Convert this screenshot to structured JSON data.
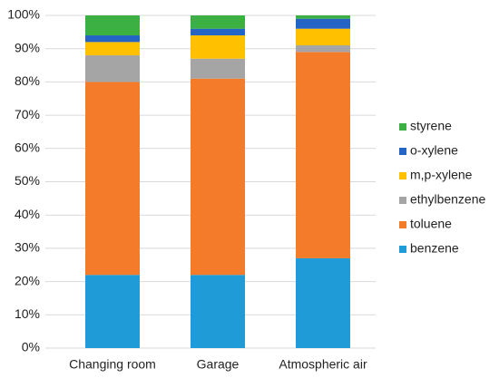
{
  "chart_data": {
    "type": "stacked_bar_100",
    "categories": [
      "Changing room",
      "Garage",
      "Atmospheric air"
    ],
    "series": [
      {
        "name": "benzene",
        "color": "#1f9bd7",
        "values": [
          22,
          22,
          27
        ]
      },
      {
        "name": "toluene",
        "color": "#f47b2a",
        "values": [
          58,
          59,
          62
        ]
      },
      {
        "name": "ethylbenzene",
        "color": "#a5a5a5",
        "values": [
          8,
          6,
          2
        ]
      },
      {
        "name": "m,p-xylene",
        "color": "#ffc000",
        "values": [
          4,
          7,
          5
        ]
      },
      {
        "name": "o-xylene",
        "color": "#2464c4",
        "values": [
          2,
          2,
          3
        ]
      },
      {
        "name": "styrene",
        "color": "#3cb043",
        "values": [
          6,
          4,
          1
        ]
      }
    ],
    "ylim": [
      0,
      100
    ],
    "yticks": [
      {
        "value": 0,
        "label": "0%"
      },
      {
        "value": 10,
        "label": "10%"
      },
      {
        "value": 20,
        "label": "20%"
      },
      {
        "value": 30,
        "label": "30%"
      },
      {
        "value": 40,
        "label": "40%"
      },
      {
        "value": 50,
        "label": "50%"
      },
      {
        "value": 60,
        "label": "60%"
      },
      {
        "value": 70,
        "label": "70%"
      },
      {
        "value": 80,
        "label": "80%"
      },
      {
        "value": 90,
        "label": "90%"
      },
      {
        "value": 100,
        "label": "100%"
      }
    ],
    "grid": true,
    "legend": "right"
  }
}
